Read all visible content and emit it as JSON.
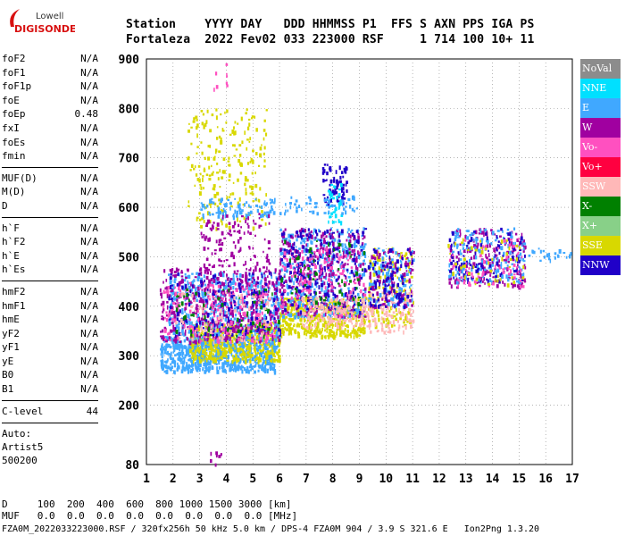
{
  "logo": {
    "line1": "Lowell",
    "line2": "DIGISONDE"
  },
  "header": {
    "line1": "Station    YYYY DAY   DDD HHMMSS P1  FFS S AXN PPS IGA PS",
    "line2": "Fortaleza  2022 Fev02 033 223000 RSF     1 714 100 10+ 11"
  },
  "params": {
    "g1": [
      {
        "name": "foF2",
        "value": "N/A"
      },
      {
        "name": "foF1",
        "value": "N/A"
      },
      {
        "name": "foF1p",
        "value": "N/A"
      },
      {
        "name": "foE",
        "value": "N/A"
      },
      {
        "name": "foEp",
        "value": "0.48"
      },
      {
        "name": "fxI",
        "value": "N/A"
      },
      {
        "name": "foEs",
        "value": "N/A"
      },
      {
        "name": "fmin",
        "value": "N/A"
      }
    ],
    "g2": [
      {
        "name": "MUF(D)",
        "value": "N/A"
      },
      {
        "name": "M(D)",
        "value": "N/A"
      },
      {
        "name": "D",
        "value": "N/A"
      }
    ],
    "g3": [
      {
        "name": "h`F",
        "value": "N/A"
      },
      {
        "name": "h`F2",
        "value": "N/A"
      },
      {
        "name": "h`E",
        "value": "N/A"
      },
      {
        "name": "h`Es",
        "value": "N/A"
      }
    ],
    "g4": [
      {
        "name": "hmF2",
        "value": "N/A"
      },
      {
        "name": "hmF1",
        "value": "N/A"
      },
      {
        "name": "hmE",
        "value": "N/A"
      },
      {
        "name": "yF2",
        "value": "N/A"
      },
      {
        "name": "yF1",
        "value": "N/A"
      },
      {
        "name": "yE",
        "value": "N/A"
      },
      {
        "name": "B0",
        "value": "N/A"
      },
      {
        "name": "B1",
        "value": "N/A"
      }
    ],
    "clevel": {
      "name": "C-level",
      "value": "44"
    },
    "auto": [
      "Auto:",
      "Artist5",
      "500200"
    ]
  },
  "legend": [
    {
      "label": "NoVal",
      "color": "#8c8c8c"
    },
    {
      "label": "NNE",
      "color": "#00e0ff"
    },
    {
      "label": "E",
      "color": "#40a8ff"
    },
    {
      "label": "W",
      "color": "#a000a0"
    },
    {
      "label": "Vo-",
      "color": "#ff50c0"
    },
    {
      "label": "Vo+",
      "color": "#ff0040"
    },
    {
      "label": "SSW",
      "color": "#ffb8b8"
    },
    {
      "label": "X-",
      "color": "#008000"
    },
    {
      "label": "X+",
      "color": "#88d088"
    },
    {
      "label": "SSE",
      "color": "#d8d800"
    },
    {
      "label": "NNW",
      "color": "#2000c8"
    }
  ],
  "bottom": {
    "d_line": "D     100  200  400  600  800 1000 1500 3000 [km]",
    "muf_line": "MUF   0.0  0.0  0.0  0.0  0.0  0.0  0.0  0.0 [MHz]"
  },
  "footer": "FZA0M_2022033223000.RSF / 320fx256h 50 kHz 5.0 km / DPS-4 FZA0M 904 / 3.9 S 321.6 E   Ion2Png 1.3.20",
  "chart_data": {
    "type": "scatter",
    "xlim": [
      1,
      17
    ],
    "ylim": [
      80,
      900
    ],
    "xticks": [
      1,
      2,
      3,
      4,
      5,
      6,
      7,
      8,
      9,
      10,
      11,
      12,
      13,
      14,
      15,
      16,
      17
    ],
    "yticks": [
      80,
      200,
      300,
      400,
      500,
      600,
      700,
      800,
      900
    ],
    "grid": true,
    "legend_position": "right",
    "clusters": [
      {
        "series": "E",
        "x": [
          1.5,
          5.8
        ],
        "y": [
          270,
          340
        ],
        "n": 700
      },
      {
        "series": "SSE",
        "x": [
          2.6,
          6.0
        ],
        "y": [
          290,
          370
        ],
        "n": 500
      },
      {
        "series": "E",
        "x": [
          1.8,
          6.0
        ],
        "y": [
          320,
          470
        ],
        "n": 600
      },
      {
        "series": "W",
        "x": [
          1.5,
          6.0
        ],
        "y": [
          330,
          480
        ],
        "n": 450
      },
      {
        "series": "Vo-",
        "x": [
          1.6,
          5.8
        ],
        "y": [
          330,
          450
        ],
        "n": 200
      },
      {
        "series": "NNW",
        "x": [
          1.8,
          6.0
        ],
        "y": [
          340,
          470
        ],
        "n": 150
      },
      {
        "series": "X-",
        "x": [
          2.0,
          6.0
        ],
        "y": [
          340,
          440
        ],
        "n": 60
      },
      {
        "series": "SSW",
        "x": [
          2.0,
          6.0
        ],
        "y": [
          330,
          430
        ],
        "n": 80
      },
      {
        "series": "SSE",
        "x": [
          2.5,
          5.5
        ],
        "y": [
          560,
          800
        ],
        "n": 220
      },
      {
        "series": "E",
        "x": [
          3.0,
          5.8
        ],
        "y": [
          580,
          620
        ],
        "n": 90
      },
      {
        "series": "W",
        "x": [
          3.0,
          5.6
        ],
        "y": [
          470,
          590
        ],
        "n": 120
      },
      {
        "series": "SSE",
        "x": [
          6.0,
          9.2
        ],
        "y": [
          340,
          420
        ],
        "n": 500
      },
      {
        "series": "E",
        "x": [
          6.0,
          9.2
        ],
        "y": [
          380,
          560
        ],
        "n": 380
      },
      {
        "series": "W",
        "x": [
          6.0,
          9.2
        ],
        "y": [
          380,
          560
        ],
        "n": 300
      },
      {
        "series": "NNW",
        "x": [
          6.0,
          9.2
        ],
        "y": [
          390,
          560
        ],
        "n": 220
      },
      {
        "series": "Vo-",
        "x": [
          6.0,
          9.2
        ],
        "y": [
          380,
          520
        ],
        "n": 120
      },
      {
        "series": "SSW",
        "x": [
          6.8,
          9.4
        ],
        "y": [
          360,
          420
        ],
        "n": 150
      },
      {
        "series": "X-",
        "x": [
          6.0,
          9.2
        ],
        "y": [
          400,
          540
        ],
        "n": 60
      },
      {
        "series": "NNW",
        "x": [
          7.6,
          8.5
        ],
        "y": [
          610,
          690
        ],
        "n": 70
      },
      {
        "series": "NNE",
        "x": [
          7.8,
          8.3
        ],
        "y": [
          570,
          650
        ],
        "n": 40
      },
      {
        "series": "E",
        "x": [
          6.0,
          9.0
        ],
        "y": [
          590,
          625
        ],
        "n": 50
      },
      {
        "series": "SSE",
        "x": [
          9.3,
          11.0
        ],
        "y": [
          360,
          520
        ],
        "n": 150
      },
      {
        "series": "SSW",
        "x": [
          9.3,
          11.0
        ],
        "y": [
          350,
          430
        ],
        "n": 120
      },
      {
        "series": "W",
        "x": [
          9.3,
          11.0
        ],
        "y": [
          400,
          520
        ],
        "n": 120
      },
      {
        "series": "E",
        "x": [
          9.3,
          11.0
        ],
        "y": [
          400,
          520
        ],
        "n": 100
      },
      {
        "series": "NNW",
        "x": [
          9.3,
          11.0
        ],
        "y": [
          400,
          520
        ],
        "n": 80
      },
      {
        "series": "W",
        "x": [
          12.3,
          15.2
        ],
        "y": [
          440,
          560
        ],
        "n": 200
      },
      {
        "series": "E",
        "x": [
          12.3,
          15.2
        ],
        "y": [
          450,
          560
        ],
        "n": 150
      },
      {
        "series": "NNW",
        "x": [
          12.3,
          15.2
        ],
        "y": [
          450,
          560
        ],
        "n": 100
      },
      {
        "series": "Vo-",
        "x": [
          12.3,
          15.2
        ],
        "y": [
          440,
          540
        ],
        "n": 60
      },
      {
        "series": "SSE",
        "x": [
          12.3,
          15.2
        ],
        "y": [
          440,
          540
        ],
        "n": 50
      },
      {
        "series": "E",
        "x": [
          15.0,
          17.0
        ],
        "y": [
          490,
          520
        ],
        "n": 25
      },
      {
        "series": "W",
        "x": [
          3.3,
          3.8
        ],
        "y": [
          80,
          115
        ],
        "n": 8
      },
      {
        "series": "Vo-",
        "x": [
          3.5,
          4.0
        ],
        "y": [
          840,
          900
        ],
        "n": 8
      }
    ]
  }
}
